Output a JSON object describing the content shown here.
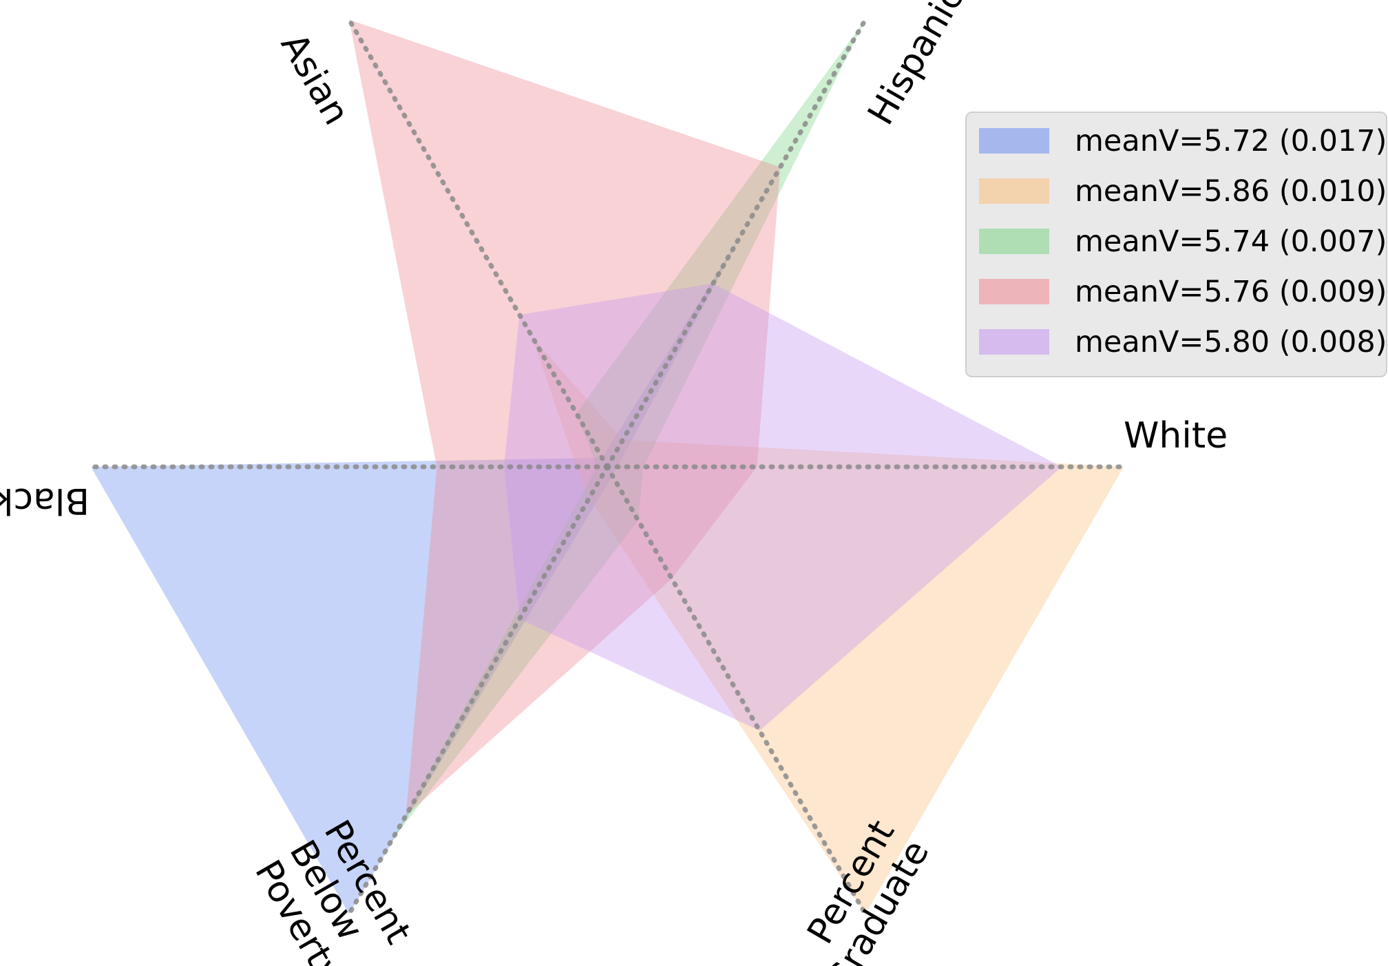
{
  "chart_data": {
    "type": "radar",
    "axes": [
      {
        "key": "white",
        "label_lines": [
          "White"
        ]
      },
      {
        "key": "hispanic",
        "label_lines": [
          "Hispanic"
        ]
      },
      {
        "key": "asian",
        "label_lines": [
          "Asian"
        ]
      },
      {
        "key": "black",
        "label_lines": [
          "Black"
        ]
      },
      {
        "key": "poverty",
        "label_lines": [
          "Percent",
          "Below",
          "Poverty"
        ]
      },
      {
        "key": "graduate",
        "label_lines": [
          "Percent",
          "Graduate"
        ]
      }
    ],
    "range": [
      0,
      1
    ],
    "legend_position": "top-right",
    "series": [
      {
        "name": "meanV=5.72 (0.017)",
        "color": "#6d8ff2",
        "values": {
          "white": 0.02,
          "hispanic": 0.52,
          "asian": 0.02,
          "black": 1.0,
          "poverty": 1.0,
          "graduate": 0.02
        }
      },
      {
        "name": "meanV=5.86 (0.010)",
        "color": "#fbbf7e",
        "values": {
          "white": 1.0,
          "hispanic": 0.06,
          "asian": 0.29,
          "black": 0.06,
          "poverty": 0.07,
          "graduate": 1.0
        }
      },
      {
        "name": "meanV=5.74 (0.007)",
        "color": "#7fd68a",
        "values": {
          "white": 0.07,
          "hispanic": 1.0,
          "asian": 0.12,
          "black": 0.02,
          "poverty": 0.84,
          "graduate": 0.12
        }
      },
      {
        "name": "meanV=5.76 (0.009)",
        "color": "#f08a92",
        "values": {
          "white": 0.29,
          "hispanic": 0.67,
          "asian": 1.0,
          "black": 0.33,
          "poverty": 0.78,
          "graduate": 0.25
        }
      },
      {
        "name": "meanV=5.80 (0.008)",
        "color": "#c596f2",
        "values": {
          "white": 0.88,
          "hispanic": 0.41,
          "asian": 0.34,
          "black": 0.2,
          "poverty": 0.34,
          "graduate": 0.59
        }
      }
    ]
  }
}
